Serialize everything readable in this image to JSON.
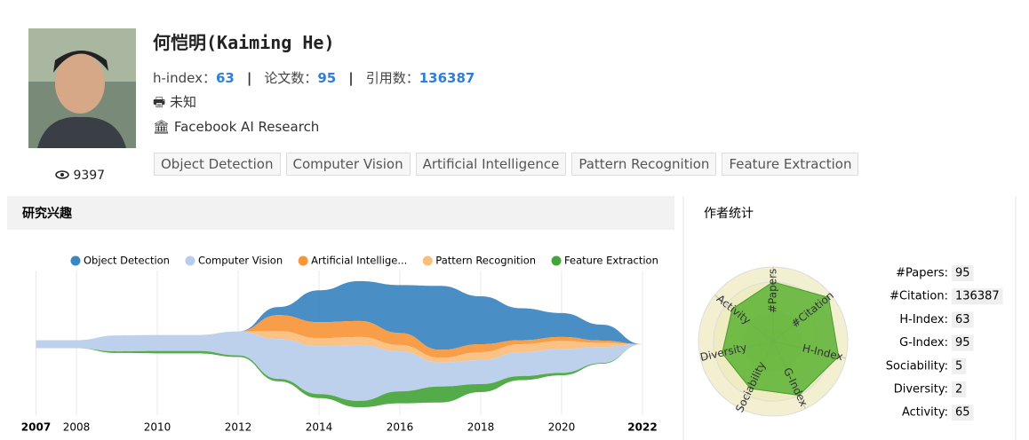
{
  "profile": {
    "name": "何恺明(Kaiming He)",
    "metrics": [
      {
        "label": "h-index：",
        "value": 63
      },
      {
        "label": "论文数：",
        "value": 95
      },
      {
        "label": "引用数：",
        "value": 136387
      }
    ],
    "position": "未知",
    "affiliation": "Facebook AI Research",
    "views": 9397,
    "tags": [
      "Object Detection",
      "Computer Vision",
      "Artificial Intelligence",
      "Pattern Recognition",
      "Feature Extraction"
    ]
  },
  "interests": {
    "title": "研究兴趣",
    "chart_data": {
      "type": "streamgraph",
      "x": [
        2007,
        2008,
        2009,
        2010,
        2011,
        2012,
        2013,
        2014,
        2015,
        2016,
        2017,
        2018,
        2019,
        2020,
        2021,
        2022
      ],
      "xlim": [
        2007,
        2022
      ],
      "xticks": [
        2007,
        2008,
        2010,
        2012,
        2014,
        2016,
        2018,
        2020,
        2022
      ],
      "grid": true,
      "series": [
        {
          "name": "Object Detection",
          "color": "#3a86c0",
          "values": [
            0,
            0,
            0,
            0,
            0,
            0,
            1,
            4,
            5,
            6,
            8,
            6,
            4,
            3,
            2,
            0
          ]
        },
        {
          "name": "Computer Vision",
          "color": "#b9cdea",
          "values": [
            1,
            1,
            2,
            2,
            2,
            3,
            5,
            6,
            7,
            5,
            3,
            3,
            3,
            3,
            2,
            0
          ]
        },
        {
          "name": "Artificial Intellige...",
          "color": "#f89638",
          "values": [
            0,
            0,
            0,
            0,
            0,
            0,
            2,
            2,
            2,
            1.5,
            1,
            1,
            0.5,
            0.5,
            0.3,
            0
          ]
        },
        {
          "name": "Pattern Recognition",
          "color": "#fbbd7c",
          "values": [
            0,
            0,
            0,
            0,
            0,
            0,
            1,
            1,
            1,
            0.8,
            0.6,
            1,
            1,
            1,
            0.5,
            0
          ]
        },
        {
          "name": "Feature Extraction",
          "color": "#44a53a",
          "values": [
            0,
            0,
            0.2,
            0.3,
            0.3,
            0.2,
            0.3,
            0.5,
            0.8,
            1.5,
            2,
            1,
            0.5,
            0.3,
            0.1,
            0
          ]
        }
      ]
    }
  },
  "stats": {
    "title": "作者统计",
    "chart_data": {
      "type": "radar",
      "axes": [
        "#Papers",
        "#Citation",
        "H-Index",
        "G-Index",
        "Sociability",
        "Diversity",
        "Activity"
      ],
      "values": [
        8,
        9.5,
        9,
        8,
        7,
        7,
        7
      ],
      "rlim": [
        0,
        10
      ],
      "color": "#5cb335"
    },
    "rows": [
      {
        "label": "#Papers:",
        "value": 95
      },
      {
        "label": "#Citation:",
        "value": 136387
      },
      {
        "label": "H-Index:",
        "value": 63
      },
      {
        "label": "G-Index:",
        "value": 95
      },
      {
        "label": "Sociability:",
        "value": 5
      },
      {
        "label": "Diversity:",
        "value": 2
      },
      {
        "label": "Activity:",
        "value": 65
      }
    ]
  }
}
